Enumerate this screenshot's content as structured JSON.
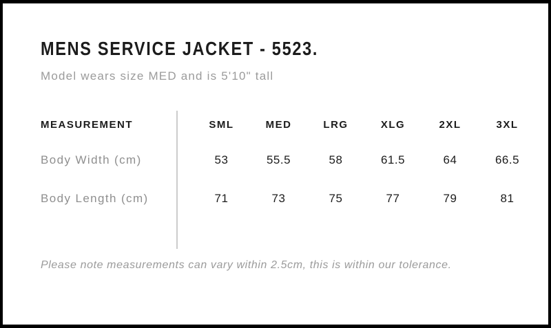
{
  "page": {
    "title": "MENS SERVICE JACKET - 5523.",
    "subtitle": "Model wears size MED and is 5'10\" tall",
    "tolerance_note": "Please note measurements can vary within 2.5cm, this is within our tolerance."
  },
  "size_chart": {
    "measurement_header": "MEASUREMENT",
    "sizes": [
      "SML",
      "MED",
      "LRG",
      "XLG",
      "2XL",
      "3XL"
    ],
    "rows": [
      {
        "label": "Body Width (cm)",
        "values": [
          "53",
          "55.5",
          "58",
          "61.5",
          "64",
          "66.5"
        ]
      },
      {
        "label": "Body Length (cm)",
        "values": [
          "71",
          "73",
          "75",
          "77",
          "79",
          "81"
        ]
      }
    ]
  },
  "colors": {
    "frame": "#000000",
    "heading_text": "#1c1c1c",
    "muted_text": "#9b9b9b",
    "divider": "#cccccc",
    "background": "#ffffff"
  }
}
